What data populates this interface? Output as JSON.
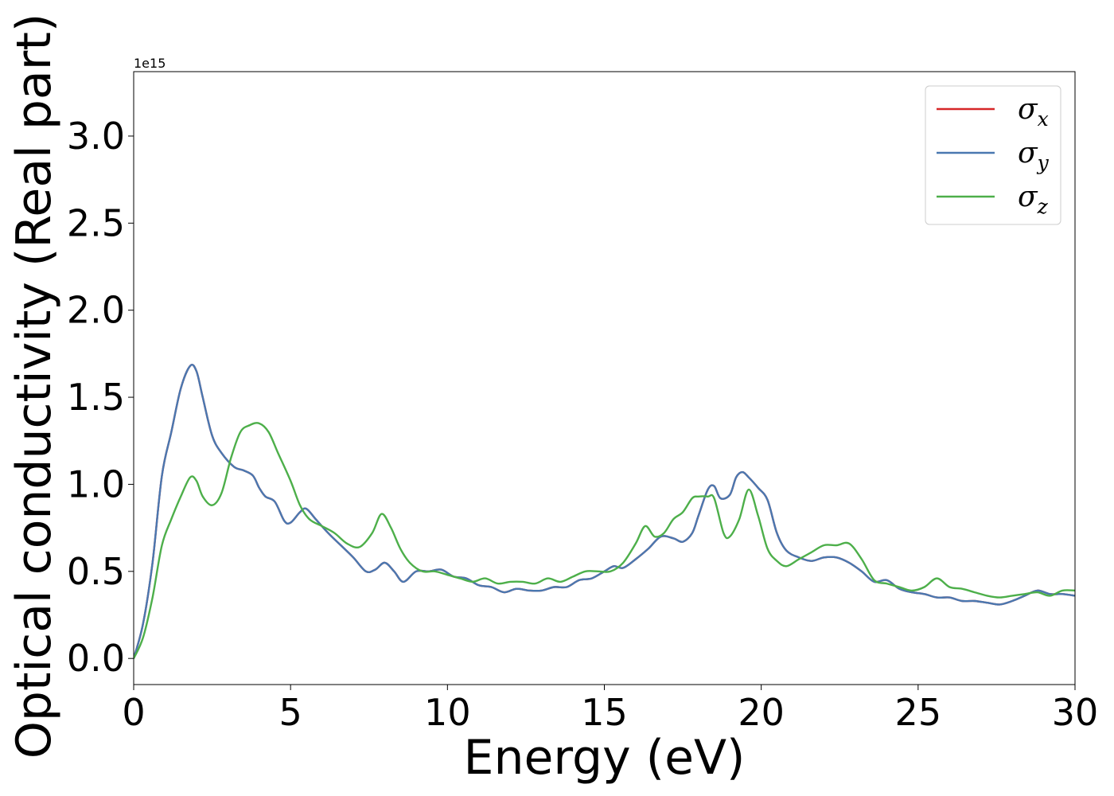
{
  "chart_data": {
    "type": "line",
    "xlabel": "Energy (eV)",
    "ylabel": "Optical conductivity (Real part)",
    "y_offset_label": "1e15",
    "y_scale_factor": 1000000000000000.0,
    "xlim": [
      0,
      30
    ],
    "ylim": [
      -0.15,
      3.37
    ],
    "xticks": [
      0,
      5,
      10,
      15,
      20,
      25,
      30
    ],
    "xtick_labels": [
      "0",
      "5",
      "10",
      "15",
      "20",
      "25",
      "30"
    ],
    "yticks": [
      0.0,
      0.5,
      1.0,
      1.5,
      2.0,
      2.5,
      3.0
    ],
    "ytick_labels": [
      "0.0",
      "0.5",
      "1.0",
      "1.5",
      "2.0",
      "2.5",
      "3.0"
    ],
    "grid": false,
    "legend_position": "top-right",
    "series": [
      {
        "name": "σx",
        "name_base": "σ",
        "name_sub": "x",
        "color": "#d62728",
        "x": [
          0,
          0.3,
          0.6,
          0.9,
          1.2,
          1.5,
          1.8,
          2.0,
          2.2,
          2.5,
          2.8,
          3.2,
          3.5,
          3.8,
          4.0,
          4.2,
          4.5,
          4.8,
          5.0,
          5.3,
          5.5,
          5.8,
          6.2,
          6.6,
          7.0,
          7.4,
          7.7,
          8.0,
          8.3,
          8.6,
          9.0,
          9.4,
          9.8,
          10.2,
          10.6,
          11.0,
          11.4,
          11.8,
          12.2,
          12.6,
          13.0,
          13.4,
          13.8,
          14.2,
          14.6,
          15.0,
          15.3,
          15.6,
          16.0,
          16.4,
          16.8,
          17.2,
          17.5,
          17.8,
          18.0,
          18.3,
          18.5,
          18.7,
          19.0,
          19.2,
          19.4,
          19.6,
          19.9,
          20.2,
          20.5,
          20.8,
          21.2,
          21.6,
          22.0,
          22.4,
          22.8,
          23.2,
          23.6,
          24.0,
          24.4,
          24.8,
          25.2,
          25.6,
          26.0,
          26.4,
          26.8,
          27.2,
          27.6,
          28.0,
          28.4,
          28.8,
          29.2,
          29.6,
          30.0
        ],
        "values": [
          0.0,
          0.2,
          0.55,
          1.05,
          1.3,
          1.55,
          1.68,
          1.65,
          1.5,
          1.28,
          1.18,
          1.1,
          1.08,
          1.05,
          0.98,
          0.93,
          0.9,
          0.79,
          0.78,
          0.84,
          0.86,
          0.8,
          0.72,
          0.65,
          0.58,
          0.5,
          0.51,
          0.55,
          0.5,
          0.44,
          0.5,
          0.5,
          0.51,
          0.47,
          0.46,
          0.42,
          0.41,
          0.38,
          0.4,
          0.39,
          0.39,
          0.41,
          0.41,
          0.45,
          0.46,
          0.5,
          0.53,
          0.52,
          0.57,
          0.63,
          0.7,
          0.69,
          0.67,
          0.72,
          0.82,
          0.97,
          0.99,
          0.92,
          0.94,
          1.04,
          1.07,
          1.04,
          0.98,
          0.91,
          0.72,
          0.62,
          0.58,
          0.56,
          0.58,
          0.58,
          0.55,
          0.5,
          0.44,
          0.45,
          0.4,
          0.38,
          0.37,
          0.35,
          0.35,
          0.33,
          0.33,
          0.32,
          0.31,
          0.33,
          0.36,
          0.39,
          0.37,
          0.37,
          0.36
        ]
      },
      {
        "name": "σy",
        "name_base": "σ",
        "name_sub": "y",
        "color": "#4a78b0",
        "x": [
          0,
          0.3,
          0.6,
          0.9,
          1.2,
          1.5,
          1.8,
          2.0,
          2.2,
          2.5,
          2.8,
          3.2,
          3.5,
          3.8,
          4.0,
          4.2,
          4.5,
          4.8,
          5.0,
          5.3,
          5.5,
          5.8,
          6.2,
          6.6,
          7.0,
          7.4,
          7.7,
          8.0,
          8.3,
          8.6,
          9.0,
          9.4,
          9.8,
          10.2,
          10.6,
          11.0,
          11.4,
          11.8,
          12.2,
          12.6,
          13.0,
          13.4,
          13.8,
          14.2,
          14.6,
          15.0,
          15.3,
          15.6,
          16.0,
          16.4,
          16.8,
          17.2,
          17.5,
          17.8,
          18.0,
          18.3,
          18.5,
          18.7,
          19.0,
          19.2,
          19.4,
          19.6,
          19.9,
          20.2,
          20.5,
          20.8,
          21.2,
          21.6,
          22.0,
          22.4,
          22.8,
          23.2,
          23.6,
          24.0,
          24.4,
          24.8,
          25.2,
          25.6,
          26.0,
          26.4,
          26.8,
          27.2,
          27.6,
          28.0,
          28.4,
          28.8,
          29.2,
          29.6,
          30.0
        ],
        "values": [
          0.0,
          0.2,
          0.55,
          1.05,
          1.3,
          1.55,
          1.68,
          1.65,
          1.5,
          1.28,
          1.18,
          1.1,
          1.08,
          1.05,
          0.98,
          0.93,
          0.9,
          0.79,
          0.78,
          0.84,
          0.86,
          0.8,
          0.72,
          0.65,
          0.58,
          0.5,
          0.51,
          0.55,
          0.5,
          0.44,
          0.5,
          0.5,
          0.51,
          0.47,
          0.46,
          0.42,
          0.41,
          0.38,
          0.4,
          0.39,
          0.39,
          0.41,
          0.41,
          0.45,
          0.46,
          0.5,
          0.53,
          0.52,
          0.57,
          0.63,
          0.7,
          0.69,
          0.67,
          0.72,
          0.82,
          0.97,
          0.99,
          0.92,
          0.94,
          1.04,
          1.07,
          1.04,
          0.98,
          0.91,
          0.72,
          0.62,
          0.58,
          0.56,
          0.58,
          0.58,
          0.55,
          0.5,
          0.44,
          0.45,
          0.4,
          0.38,
          0.37,
          0.35,
          0.35,
          0.33,
          0.33,
          0.32,
          0.31,
          0.33,
          0.36,
          0.39,
          0.37,
          0.37,
          0.36
        ]
      },
      {
        "name": "σz",
        "name_base": "σ",
        "name_sub": "z",
        "color": "#4daf4a",
        "x": [
          0,
          0.3,
          0.6,
          0.9,
          1.2,
          1.5,
          1.8,
          2.0,
          2.2,
          2.5,
          2.8,
          3.1,
          3.4,
          3.7,
          4.0,
          4.3,
          4.6,
          5.0,
          5.3,
          5.6,
          6.0,
          6.4,
          6.8,
          7.2,
          7.6,
          7.9,
          8.2,
          8.5,
          8.8,
          9.2,
          9.6,
          10.0,
          10.4,
          10.8,
          11.2,
          11.6,
          12.0,
          12.4,
          12.8,
          13.2,
          13.6,
          14.0,
          14.4,
          14.8,
          15.2,
          15.6,
          16.0,
          16.3,
          16.6,
          16.9,
          17.2,
          17.5,
          17.8,
          18.0,
          18.3,
          18.5,
          18.8,
          19.0,
          19.3,
          19.6,
          19.9,
          20.2,
          20.5,
          20.8,
          21.2,
          21.6,
          22.0,
          22.4,
          22.8,
          23.2,
          23.6,
          24.0,
          24.4,
          24.8,
          25.2,
          25.6,
          26.0,
          26.4,
          26.8,
          27.2,
          27.6,
          28.0,
          28.4,
          28.8,
          29.2,
          29.6,
          30.0
        ],
        "values": [
          0.0,
          0.12,
          0.35,
          0.65,
          0.8,
          0.93,
          1.04,
          1.02,
          0.93,
          0.88,
          0.95,
          1.15,
          1.3,
          1.34,
          1.35,
          1.3,
          1.18,
          1.02,
          0.88,
          0.8,
          0.76,
          0.72,
          0.66,
          0.64,
          0.72,
          0.83,
          0.75,
          0.63,
          0.55,
          0.5,
          0.5,
          0.48,
          0.46,
          0.44,
          0.46,
          0.43,
          0.44,
          0.44,
          0.43,
          0.46,
          0.44,
          0.47,
          0.5,
          0.5,
          0.5,
          0.55,
          0.66,
          0.76,
          0.7,
          0.72,
          0.8,
          0.84,
          0.92,
          0.93,
          0.93,
          0.92,
          0.72,
          0.7,
          0.8,
          0.97,
          0.82,
          0.63,
          0.56,
          0.53,
          0.57,
          0.61,
          0.65,
          0.65,
          0.66,
          0.57,
          0.45,
          0.43,
          0.41,
          0.39,
          0.41,
          0.46,
          0.41,
          0.4,
          0.38,
          0.36,
          0.35,
          0.36,
          0.37,
          0.38,
          0.36,
          0.39,
          0.39
        ]
      }
    ]
  }
}
